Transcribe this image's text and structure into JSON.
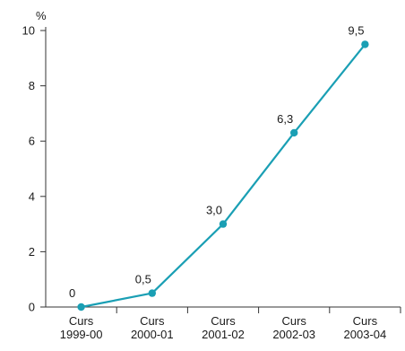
{
  "chart_data": {
    "type": "line",
    "title": "",
    "xlabel": "",
    "ylabel": "%",
    "ylim": [
      0,
      10
    ],
    "yticks": [
      0,
      2,
      4,
      6,
      8,
      10
    ],
    "grid": false,
    "categories": [
      [
        "Curs",
        "1999-00"
      ],
      [
        "Curs",
        "2000-01"
      ],
      [
        "Curs",
        "2001-02"
      ],
      [
        "Curs",
        "2002-03"
      ],
      [
        "Curs",
        "2003-04"
      ]
    ],
    "series": [
      {
        "values": [
          0,
          0.5,
          3.0,
          6.3,
          9.5
        ],
        "data_labels": [
          "0",
          "0,5",
          "3,0",
          "6,3",
          "9,5"
        ],
        "color": "#1a9fb4"
      }
    ]
  }
}
